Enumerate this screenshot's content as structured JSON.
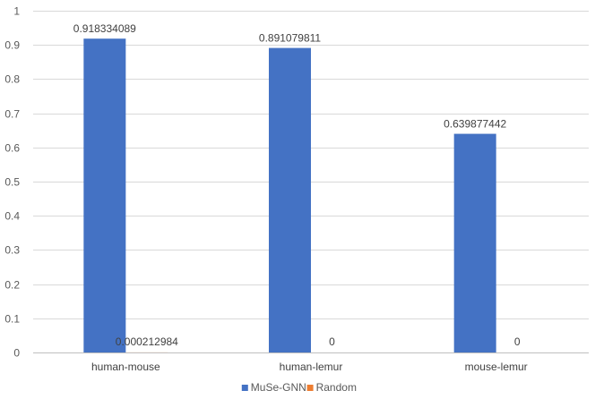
{
  "chart_data": {
    "type": "bar",
    "categories": [
      "human-mouse",
      "human-lemur",
      "mouse-lemur"
    ],
    "series": [
      {
        "name": "MuSe-GNN",
        "color": "#4472C4",
        "values": [
          0.918334089,
          0.891079811,
          0.639877442
        ],
        "labels": [
          "0.918334089",
          "0.891079811",
          "0.639877442"
        ]
      },
      {
        "name": "Random",
        "color": "#ED7D31",
        "values": [
          0.000212984,
          0,
          0
        ],
        "labels": [
          "0.000212984",
          "0",
          "0"
        ]
      }
    ],
    "ylim": [
      0,
      1
    ],
    "yticks": [
      "0",
      "0.1",
      "0.2",
      "0.3",
      "0.4",
      "0.5",
      "0.6",
      "0.7",
      "0.8",
      "0.9",
      "1"
    ],
    "grid": true,
    "legend_position": "bottom",
    "title": "",
    "xlabel": "",
    "ylabel": ""
  }
}
